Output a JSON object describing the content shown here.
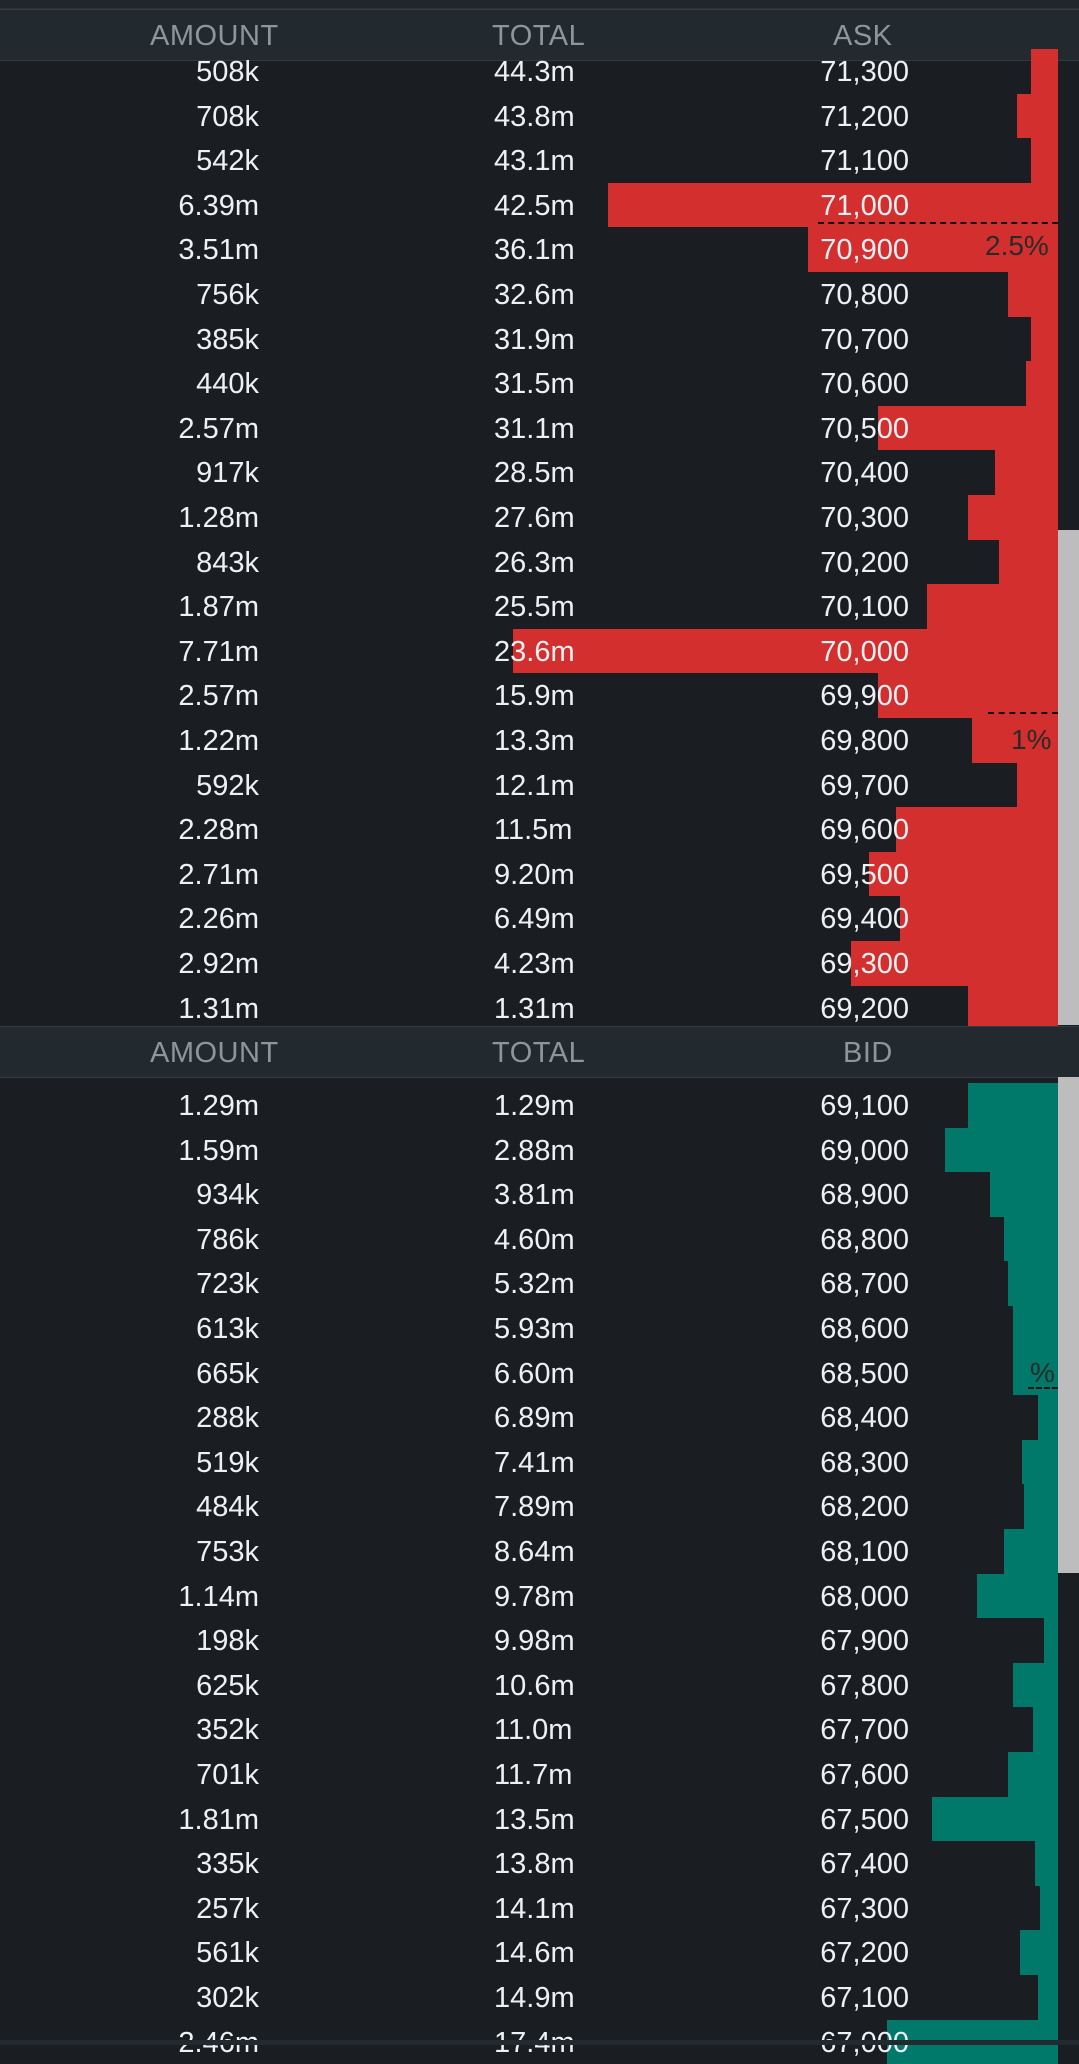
{
  "colors": {
    "background": "#1a1e23",
    "header": "#22292f",
    "ask": "#d32f2f",
    "bid": "#00796b",
    "text": "#eef1f3",
    "header_text": "#8e969d",
    "scrollbar": "#bdbdbd"
  },
  "asks": {
    "header": {
      "amount": "AMOUNT",
      "total": "TOTAL",
      "side": "ASK"
    },
    "marker_far": "2.5%",
    "marker_near": "1%",
    "rows": [
      {
        "amount": "508k",
        "total": "44.3m",
        "price": "71,300",
        "depth": 0.06
      },
      {
        "amount": "708k",
        "total": "43.8m",
        "price": "71,200",
        "depth": 0.09
      },
      {
        "amount": "542k",
        "total": "43.1m",
        "price": "71,100",
        "depth": 0.06
      },
      {
        "amount": "6.39m",
        "total": "42.5m",
        "price": "71,000",
        "depth": 1.0
      },
      {
        "amount": "3.51m",
        "total": "36.1m",
        "price": "70,900",
        "depth": 0.555
      },
      {
        "amount": "756k",
        "total": "32.6m",
        "price": "70,800",
        "depth": 0.11
      },
      {
        "amount": "385k",
        "total": "31.9m",
        "price": "70,700",
        "depth": 0.06
      },
      {
        "amount": "440k",
        "total": "31.5m",
        "price": "70,600",
        "depth": 0.07
      },
      {
        "amount": "2.57m",
        "total": "31.1m",
        "price": "70,500",
        "depth": 0.4
      },
      {
        "amount": "917k",
        "total": "28.5m",
        "price": "70,400",
        "depth": 0.14
      },
      {
        "amount": "1.28m",
        "total": "27.6m",
        "price": "70,300",
        "depth": 0.2
      },
      {
        "amount": "843k",
        "total": "26.3m",
        "price": "70,200",
        "depth": 0.13
      },
      {
        "amount": "1.87m",
        "total": "25.5m",
        "price": "70,100",
        "depth": 0.29
      },
      {
        "amount": "7.71m",
        "total": "23.6m",
        "price": "70,000",
        "depth": 1.21
      },
      {
        "amount": "2.57m",
        "total": "15.9m",
        "price": "69,900",
        "depth": 0.4
      },
      {
        "amount": "1.22m",
        "total": "13.3m",
        "price": "69,800",
        "depth": 0.19
      },
      {
        "amount": "592k",
        "total": "12.1m",
        "price": "69,700",
        "depth": 0.09
      },
      {
        "amount": "2.28m",
        "total": "11.5m",
        "price": "69,600",
        "depth": 0.36
      },
      {
        "amount": "2.71m",
        "total": "9.20m",
        "price": "69,500",
        "depth": 0.42
      },
      {
        "amount": "2.26m",
        "total": "6.49m",
        "price": "69,400",
        "depth": 0.35
      },
      {
        "amount": "2.92m",
        "total": "4.23m",
        "price": "69,300",
        "depth": 0.46
      },
      {
        "amount": "1.31m",
        "total": "1.31m",
        "price": "69,200",
        "depth": 0.2
      }
    ]
  },
  "bids": {
    "header": {
      "amount": "AMOUNT",
      "total": "TOTAL",
      "side": "BID"
    },
    "marker_label": "%",
    "rows": [
      {
        "amount": "1.29m",
        "total": "1.29m",
        "price": "69,100",
        "depth": 0.2
      },
      {
        "amount": "1.59m",
        "total": "2.88m",
        "price": "69,000",
        "depth": 0.25
      },
      {
        "amount": "934k",
        "total": "3.81m",
        "price": "68,900",
        "depth": 0.15
      },
      {
        "amount": "786k",
        "total": "4.60m",
        "price": "68,800",
        "depth": 0.12
      },
      {
        "amount": "723k",
        "total": "5.32m",
        "price": "68,700",
        "depth": 0.11
      },
      {
        "amount": "613k",
        "total": "5.93m",
        "price": "68,600",
        "depth": 0.1
      },
      {
        "amount": "665k",
        "total": "6.60m",
        "price": "68,500",
        "depth": 0.1
      },
      {
        "amount": "288k",
        "total": "6.89m",
        "price": "68,400",
        "depth": 0.045
      },
      {
        "amount": "519k",
        "total": "7.41m",
        "price": "68,300",
        "depth": 0.08
      },
      {
        "amount": "484k",
        "total": "7.89m",
        "price": "68,200",
        "depth": 0.075
      },
      {
        "amount": "753k",
        "total": "8.64m",
        "price": "68,100",
        "depth": 0.12
      },
      {
        "amount": "1.14m",
        "total": "9.78m",
        "price": "68,000",
        "depth": 0.18
      },
      {
        "amount": "198k",
        "total": "9.98m",
        "price": "67,900",
        "depth": 0.03
      },
      {
        "amount": "625k",
        "total": "10.6m",
        "price": "67,800",
        "depth": 0.1
      },
      {
        "amount": "352k",
        "total": "11.0m",
        "price": "67,700",
        "depth": 0.055
      },
      {
        "amount": "701k",
        "total": "11.7m",
        "price": "67,600",
        "depth": 0.11
      },
      {
        "amount": "1.81m",
        "total": "13.5m",
        "price": "67,500",
        "depth": 0.28
      },
      {
        "amount": "335k",
        "total": "13.8m",
        "price": "67,400",
        "depth": 0.05
      },
      {
        "amount": "257k",
        "total": "14.1m",
        "price": "67,300",
        "depth": 0.04
      },
      {
        "amount": "561k",
        "total": "14.6m",
        "price": "67,200",
        "depth": 0.085
      },
      {
        "amount": "302k",
        "total": "14.9m",
        "price": "67,100",
        "depth": 0.045
      },
      {
        "amount": "2.46m",
        "total": "17.4m",
        "price": "67,000",
        "depth": 0.38
      }
    ]
  }
}
